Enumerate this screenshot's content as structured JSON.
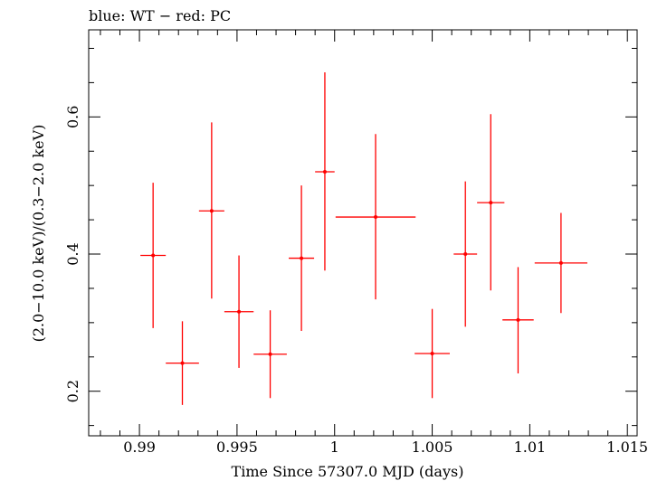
{
  "chart_data": {
    "type": "scatter",
    "title": "blue: WT − red: PC",
    "xlabel": "Time Since 57307.0 MJD (days)",
    "ylabel": "(2.0−10.0 keV)/(0.3−2.0 keV)",
    "xlim": [
      0.9874,
      1.0155
    ],
    "ylim": [
      0.135,
      0.727
    ],
    "x_ticks": [
      0.99,
      0.995,
      1.0,
      1.005,
      1.01,
      1.015
    ],
    "x_tick_labels": [
      "0.99",
      "0.995",
      "1",
      "1.005",
      "1.01",
      "1.015"
    ],
    "y_ticks": [
      0.2,
      0.4,
      0.6
    ],
    "y_tick_labels": [
      "0.2",
      "0.4",
      "0.6"
    ],
    "grid": false,
    "series": [
      {
        "name": "PC",
        "color": "#ff0000",
        "points": [
          {
            "x": 0.9907,
            "xerr": 0.00065,
            "y": 0.398,
            "ylo": 0.292,
            "yhi": 0.504
          },
          {
            "x": 0.9922,
            "xerr": 0.00085,
            "y": 0.241,
            "ylo": 0.18,
            "yhi": 0.302
          },
          {
            "x": 0.9937,
            "xerr": 0.00065,
            "y": 0.463,
            "ylo": 0.335,
            "yhi": 0.592
          },
          {
            "x": 0.9951,
            "xerr": 0.00075,
            "y": 0.316,
            "ylo": 0.234,
            "yhi": 0.398
          },
          {
            "x": 0.9967,
            "xerr": 0.00085,
            "y": 0.254,
            "ylo": 0.19,
            "yhi": 0.318
          },
          {
            "x": 0.9983,
            "xerr": 0.00065,
            "y": 0.394,
            "ylo": 0.288,
            "yhi": 0.5
          },
          {
            "x": 0.9995,
            "xerr": 0.0005,
            "y": 0.52,
            "ylo": 0.376,
            "yhi": 0.665
          },
          {
            "x": 1.0021,
            "xerr": 0.00205,
            "y": 0.454,
            "ylo": 0.334,
            "yhi": 0.575
          },
          {
            "x": 1.005,
            "xerr": 0.0009,
            "y": 0.255,
            "ylo": 0.19,
            "yhi": 0.32
          },
          {
            "x": 1.0067,
            "xerr": 0.0006,
            "y": 0.4,
            "ylo": 0.294,
            "yhi": 0.506
          },
          {
            "x": 1.008,
            "xerr": 0.0007,
            "y": 0.475,
            "ylo": 0.347,
            "yhi": 0.604
          },
          {
            "x": 1.0094,
            "xerr": 0.0008,
            "y": 0.304,
            "ylo": 0.226,
            "yhi": 0.381
          },
          {
            "x": 1.0116,
            "xerr": 0.00135,
            "y": 0.387,
            "ylo": 0.314,
            "yhi": 0.46
          }
        ]
      }
    ]
  }
}
